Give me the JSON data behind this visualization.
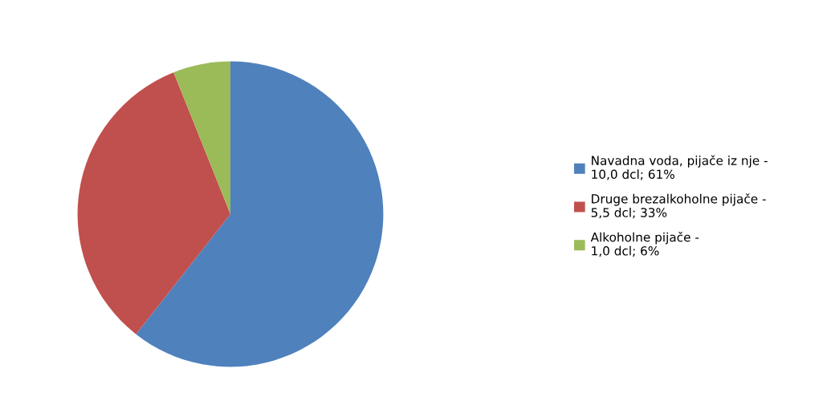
{
  "chart_data": {
    "type": "pie",
    "categories": [
      "Navadna voda, pijače iz nje -\n10,0 dcl; 61%",
      "Druge brezalkoholne pijače -\n5,5 dcl; 33%",
      "Alkoholne pijače -\n1,0 dcl; 6%"
    ],
    "values": [
      10.0,
      5.5,
      1.0
    ],
    "colors": [
      "#4f81bd",
      "#c0504d",
      "#9bbb59"
    ],
    "legend": "right"
  }
}
